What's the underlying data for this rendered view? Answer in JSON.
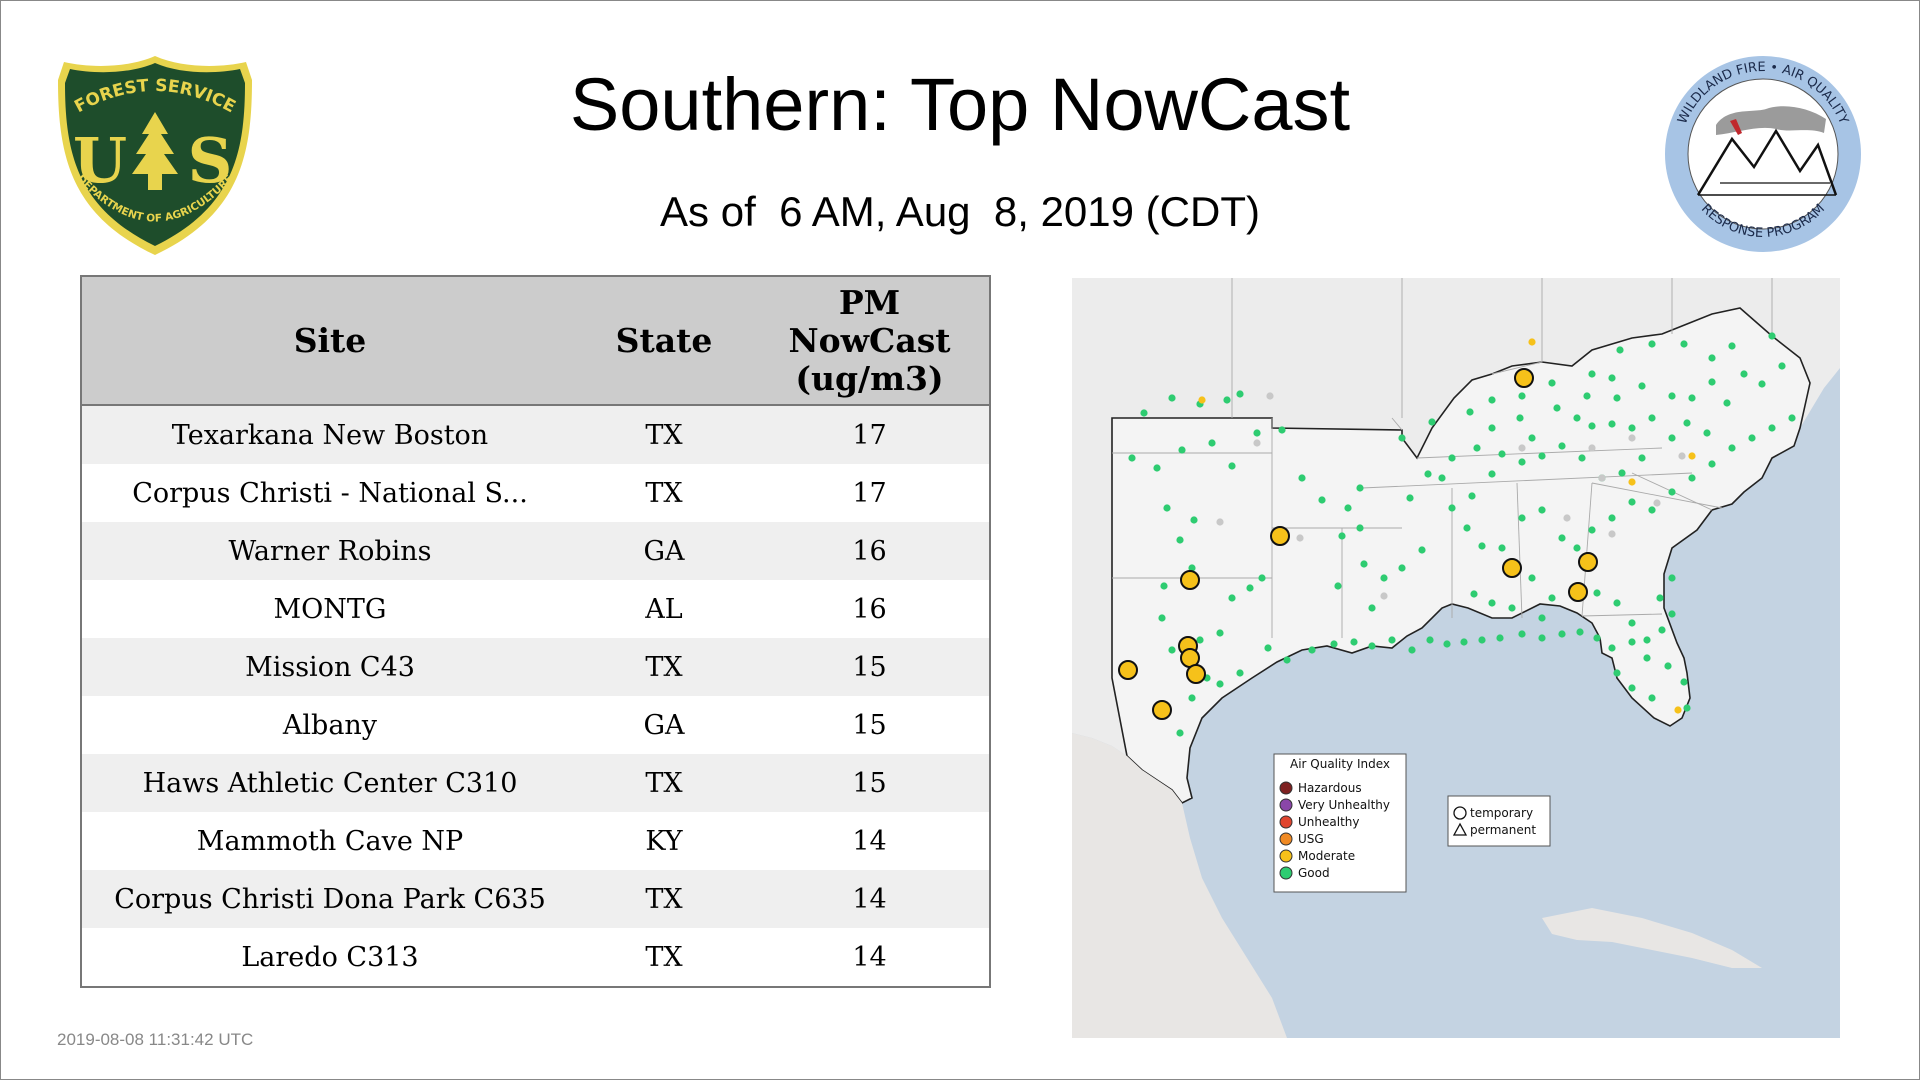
{
  "title": "Southern: Top NowCast",
  "subtitle": "As of  6 AM, Aug  8, 2019 (CDT)",
  "timestamp": "2019-08-08 11:31:42 UTC",
  "logos": {
    "forest_service": {
      "top_text": "FOREST SERVICE",
      "letters_left": "U",
      "letters_right": "S",
      "bottom_text": "DEPARTMENT OF AGRICULTURE",
      "colors": {
        "green": "#1e4d2b",
        "yellow": "#e8d44d"
      }
    },
    "wildland_fire": {
      "top_text": "WILDLAND FIRE • AIR QUALITY",
      "bottom_text": "RESPONSE PROGRAM",
      "colors": {
        "ring": "#a7c4e5"
      }
    }
  },
  "table": {
    "headers": {
      "site": "Site",
      "state": "State",
      "value_line1": "PM",
      "value_line2": "NowCast",
      "value_line3": "(ug/m3)"
    },
    "rows": [
      {
        "site": "Texarkana New Boston",
        "state": "TX",
        "value": "17"
      },
      {
        "site": "Corpus Christi - National S...",
        "state": "TX",
        "value": "17"
      },
      {
        "site": "Warner Robins",
        "state": "GA",
        "value": "16"
      },
      {
        "site": "MONTG",
        "state": "AL",
        "value": "16"
      },
      {
        "site": "Mission C43",
        "state": "TX",
        "value": "15"
      },
      {
        "site": "Albany",
        "state": "GA",
        "value": "15"
      },
      {
        "site": "Haws Athletic Center C310",
        "state": "TX",
        "value": "15"
      },
      {
        "site": "Mammoth Cave NP",
        "state": "KY",
        "value": "14"
      },
      {
        "site": "Corpus Christi Dona Park C635",
        "state": "TX",
        "value": "14"
      },
      {
        "site": "Laredo C313",
        "state": "TX",
        "value": "14"
      }
    ]
  },
  "map": {
    "legend": {
      "title": "Air Quality Index",
      "items": [
        {
          "label": "Hazardous",
          "color": "#7e2121"
        },
        {
          "label": "Very Unhealthy",
          "color": "#8a46a8"
        },
        {
          "label": "Unhealthy",
          "color": "#e0452f"
        },
        {
          "label": "USG",
          "color": "#f08a24"
        },
        {
          "label": "Moderate",
          "color": "#f6c11a"
        },
        {
          "label": "Good",
          "color": "#2ecc71"
        }
      ]
    },
    "shape_legend": {
      "temporary": "temporary",
      "permanent": "permanent"
    },
    "colors": {
      "water": "#c4d3e2",
      "land": "#ececec",
      "region_land": "#f4f4f4",
      "good": "#2ecc71",
      "moderate": "#f6c11a",
      "no_data": "#c8c8c8"
    }
  }
}
